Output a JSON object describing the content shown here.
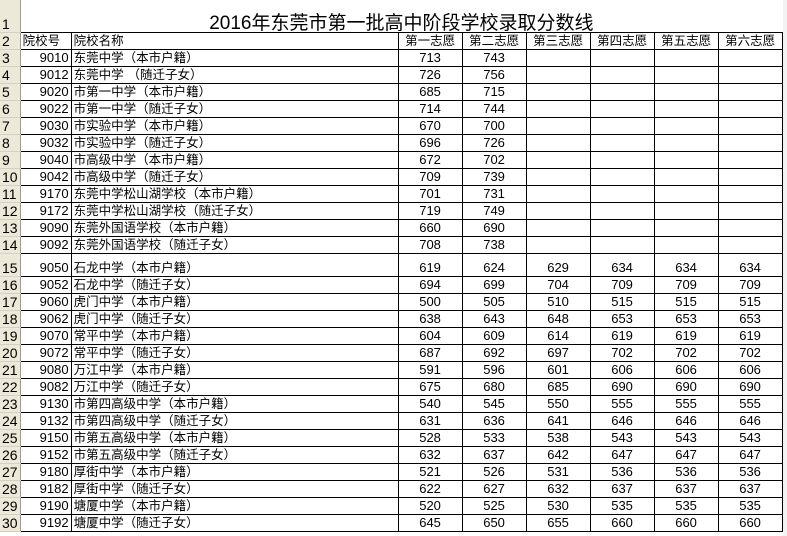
{
  "title": "2016年东莞市第一批高中阶段学校录取分数线",
  "row_numbers": [
    "1",
    "2",
    "3",
    "4",
    "5",
    "6",
    "7",
    "8",
    "9",
    "10",
    "11",
    "12",
    "13",
    "14",
    "15",
    "16",
    "17",
    "18",
    "19",
    "20",
    "21",
    "22",
    "23",
    "24",
    "25",
    "26",
    "27",
    "28",
    "29",
    "30"
  ],
  "headers": [
    "院校号",
    "院校名称",
    "第一志愿",
    "第二志愿",
    "第三志愿",
    "第四志愿",
    "第五志愿",
    "第六志愿"
  ],
  "rows": [
    {
      "id": "9010",
      "name": "东莞中学（本市户籍）",
      "s": [
        "713",
        "743",
        "",
        "",
        "",
        ""
      ]
    },
    {
      "id": "9012",
      "name": "东莞中学 （随迁子女）",
      "s": [
        "726",
        "756",
        "",
        "",
        "",
        ""
      ]
    },
    {
      "id": "9020",
      "name": "市第一中学（本市户籍）",
      "s": [
        "685",
        "715",
        "",
        "",
        "",
        ""
      ]
    },
    {
      "id": "9022",
      "name": "市第一中学（随迁子女）",
      "s": [
        "714",
        "744",
        "",
        "",
        "",
        ""
      ]
    },
    {
      "id": "9030",
      "name": "市实验中学（本市户籍）",
      "s": [
        "670",
        "700",
        "",
        "",
        "",
        ""
      ]
    },
    {
      "id": "9032",
      "name": "市实验中学（随迁子女）",
      "s": [
        "696",
        "726",
        "",
        "",
        "",
        ""
      ]
    },
    {
      "id": "9040",
      "name": "市高级中学（本市户籍）",
      "s": [
        "672",
        "702",
        "",
        "",
        "",
        ""
      ]
    },
    {
      "id": "9042",
      "name": "市高级中学（随迁子女）",
      "s": [
        "709",
        "739",
        "",
        "",
        "",
        ""
      ]
    },
    {
      "id": "9170",
      "name": "东莞中学松山湖学校（本市户籍）",
      "s": [
        "701",
        "731",
        "",
        "",
        "",
        ""
      ]
    },
    {
      "id": "9172",
      "name": "东莞中学松山湖学校（随迁子女）",
      "s": [
        "719",
        "749",
        "",
        "",
        "",
        ""
      ]
    },
    {
      "id": "9090",
      "name": "东莞外国语学校（本市户籍）",
      "s": [
        "660",
        "690",
        "",
        "",
        "",
        ""
      ]
    },
    {
      "id": "9092",
      "name": "东莞外国语学校（随迁子女）",
      "s": [
        "708",
        "738",
        "",
        "",
        "",
        ""
      ]
    },
    {
      "id": "9050",
      "name": "石龙中学（本市户籍）",
      "s": [
        "619",
        "624",
        "629",
        "634",
        "634",
        "634"
      ]
    },
    {
      "id": "9052",
      "name": "石龙中学（随迁子女）",
      "s": [
        "694",
        "699",
        "704",
        "709",
        "709",
        "709"
      ]
    },
    {
      "id": "9060",
      "name": "虎门中学（本市户籍）",
      "s": [
        "500",
        "505",
        "510",
        "515",
        "515",
        "515"
      ]
    },
    {
      "id": "9062",
      "name": "虎门中学（随迁子女）",
      "s": [
        "638",
        "643",
        "648",
        "653",
        "653",
        "653"
      ]
    },
    {
      "id": "9070",
      "name": "常平中学（本市户籍）",
      "s": [
        "604",
        "609",
        "614",
        "619",
        "619",
        "619"
      ]
    },
    {
      "id": "9072",
      "name": "常平中学（随迁子女）",
      "s": [
        "687",
        "692",
        "697",
        "702",
        "702",
        "702"
      ]
    },
    {
      "id": "9080",
      "name": "万江中学（本市户籍）",
      "s": [
        "591",
        "596",
        "601",
        "606",
        "606",
        "606"
      ]
    },
    {
      "id": "9082",
      "name": "万江中学（随迁子女）",
      "s": [
        "675",
        "680",
        "685",
        "690",
        "690",
        "690"
      ]
    },
    {
      "id": "9130",
      "name": "市第四高级中学（本市户籍）",
      "s": [
        "540",
        "545",
        "550",
        "555",
        "555",
        "555"
      ]
    },
    {
      "id": "9132",
      "name": "市第四高级中学（随迁子女）",
      "s": [
        "631",
        "636",
        "641",
        "646",
        "646",
        "646"
      ]
    },
    {
      "id": "9150",
      "name": "市第五高级中学（本市户籍）",
      "s": [
        "528",
        "533",
        "538",
        "543",
        "543",
        "543"
      ]
    },
    {
      "id": "9152",
      "name": "市第五高级中学（随迁子女）",
      "s": [
        "632",
        "637",
        "642",
        "647",
        "647",
        "647"
      ]
    },
    {
      "id": "9180",
      "name": "厚街中学（本市户籍）",
      "s": [
        "521",
        "526",
        "531",
        "536",
        "536",
        "536"
      ]
    },
    {
      "id": "9182",
      "name": "厚街中学（随迁子女）",
      "s": [
        "622",
        "627",
        "632",
        "637",
        "637",
        "637"
      ]
    },
    {
      "id": "9190",
      "name": "塘厦中学（本市户籍）",
      "s": [
        "520",
        "525",
        "530",
        "535",
        "535",
        "535"
      ]
    },
    {
      "id": "9192",
      "name": "塘厦中学（随迁子女）",
      "s": [
        "645",
        "650",
        "655",
        "660",
        "660",
        "660"
      ]
    }
  ]
}
